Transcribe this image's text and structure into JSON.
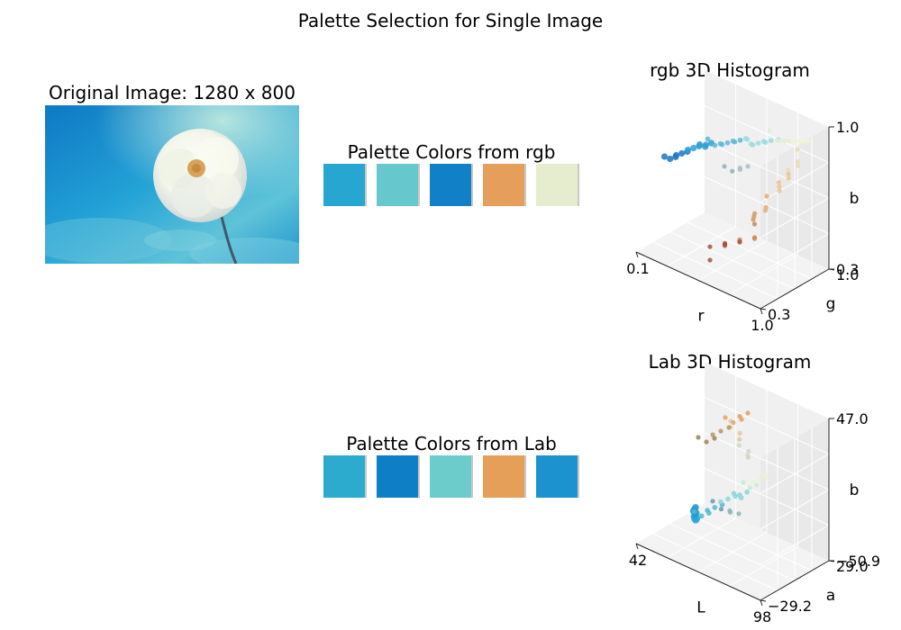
{
  "figure": {
    "title": "Palette Selection for Single Image"
  },
  "image_panel": {
    "title": "Original Image: 1280 x 800"
  },
  "palettes": [
    {
      "title": "Palette Colors from rgb",
      "colors": [
        "#26a6d1",
        "#66c7cc",
        "#1180c6",
        "#e59f5b",
        "#e6edcf"
      ]
    },
    {
      "title": "Palette Colors from Lab",
      "colors": [
        "#2dabcf",
        "#0e7ec6",
        "#6ccccc",
        "#e59f58",
        "#1c93cf"
      ]
    }
  ],
  "chart_data": [
    {
      "type": "scatter",
      "projection": "3d",
      "title": "rgb 3D Histogram",
      "xlabel": "r",
      "ylabel": "g",
      "zlabel": "b",
      "xticks": [
        "0.1",
        "1.0"
      ],
      "yticks": [
        "0.3",
        "1.0"
      ],
      "zticks": [
        "0.3",
        "1.0"
      ],
      "xlim": [
        0.1,
        1.0
      ],
      "ylim": [
        0.3,
        1.0
      ],
      "zlim": [
        0.3,
        1.0
      ],
      "grid": true
    },
    {
      "type": "scatter",
      "projection": "3d",
      "title": "Lab 3D Histogram",
      "xlabel": "L",
      "ylabel": "a",
      "zlabel": "b",
      "xticks": [
        "42",
        "98"
      ],
      "yticks": [
        "−29.2",
        "29.0"
      ],
      "zticks": [
        "−50.9",
        "47.0"
      ],
      "xlim": [
        42,
        98
      ],
      "ylim": [
        -29.2,
        29.0
      ],
      "zlim": [
        -50.9,
        47.0
      ],
      "grid": true
    }
  ]
}
